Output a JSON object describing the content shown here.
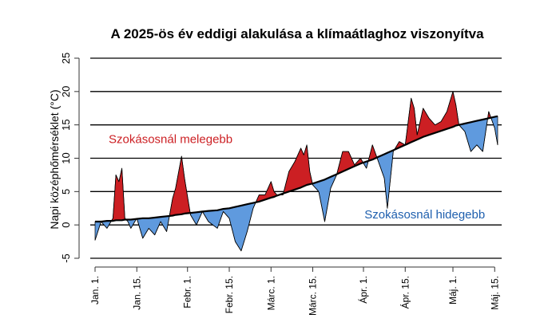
{
  "chart_data": {
    "type": "area",
    "title": "A 2025-ös év eddigi alakulása a klímaátlaghoz viszonyítva",
    "ylabel": "Napi középhőmérséklet (°C)",
    "xlabel": "",
    "ylim": [
      -5,
      25
    ],
    "xlim_days": [
      1,
      136
    ],
    "yticks": [
      25,
      20,
      15,
      10,
      5,
      0,
      -5
    ],
    "ytick_labels": [
      "25",
      "20",
      "15",
      "10",
      "5",
      "0",
      "-5"
    ],
    "grid": true,
    "x_tick_labels": [
      "Jan. 1.",
      "Jan. 15.",
      "Febr. 1.",
      "Febr. 15.",
      "Márc. 1.",
      "Márc. 15.",
      "Ápr. 1.",
      "Ápr. 15.",
      "Máj. 1.",
      "Máj. 15."
    ],
    "x_tick_dates": [
      "2025-01-01",
      "2025-01-15",
      "2025-02-01",
      "2025-02-15",
      "2025-03-01",
      "2025-03-15",
      "2025-04-01",
      "2025-04-15",
      "2025-05-01",
      "2025-05-15"
    ],
    "x_dates": [
      "2025-01-01",
      "2025-01-03",
      "2025-01-05",
      "2025-01-07",
      "2025-01-08",
      "2025-01-09",
      "2025-01-10",
      "2025-01-11",
      "2025-01-12",
      "2025-01-13",
      "2025-01-15",
      "2025-01-17",
      "2025-01-19",
      "2025-01-21",
      "2025-01-23",
      "2025-01-25",
      "2025-01-27",
      "2025-01-28",
      "2025-01-30",
      "2025-01-31",
      "2025-02-02",
      "2025-02-04",
      "2025-02-06",
      "2025-02-08",
      "2025-02-11",
      "2025-02-13",
      "2025-02-15",
      "2025-02-17",
      "2025-02-19",
      "2025-02-21",
      "2025-02-23",
      "2025-02-25",
      "2025-02-27",
      "2025-03-01",
      "2025-03-02",
      "2025-03-03",
      "2025-03-05",
      "2025-03-07",
      "2025-03-09",
      "2025-03-11",
      "2025-03-12",
      "2025-03-13",
      "2025-03-14",
      "2025-03-15",
      "2025-03-17",
      "2025-03-19",
      "2025-03-21",
      "2025-03-23",
      "2025-03-25",
      "2025-03-27",
      "2025-03-29",
      "2025-03-31",
      "2025-04-02",
      "2025-04-04",
      "2025-04-06",
      "2025-04-08",
      "2025-04-09",
      "2025-04-11",
      "2025-04-13",
      "2025-04-15",
      "2025-04-17",
      "2025-04-18",
      "2025-04-19",
      "2025-04-21",
      "2025-04-23",
      "2025-04-25",
      "2025-04-27",
      "2025-04-29",
      "2025-05-01",
      "2025-05-02",
      "2025-05-03",
      "2025-05-05",
      "2025-05-07",
      "2025-05-09",
      "2025-05-11",
      "2025-05-13",
      "2025-05-15",
      "2025-05-16"
    ],
    "series": [
      {
        "role": "observed",
        "values": [
          -2.3,
          0.5,
          -0.5,
          1.0,
          7.5,
          6.5,
          8.5,
          1.0,
          0.5,
          -0.5,
          1.0,
          -2.0,
          -0.5,
          -1.5,
          0.5,
          -1.0,
          4.0,
          5.5,
          10.3,
          7.0,
          1.5,
          0.0,
          2.0,
          0.5,
          -0.5,
          2.0,
          1.0,
          -2.5,
          -3.9,
          -1.0,
          2.5,
          4.5,
          4.5,
          6.5,
          5.0,
          4.5,
          4.5,
          8.0,
          9.5,
          11.5,
          10.5,
          12.0,
          8.0,
          6.0,
          5.0,
          0.5,
          5.5,
          7.5,
          11.0,
          11.0,
          9.0,
          10.0,
          8.5,
          12.0,
          9.5,
          7.0,
          2.5,
          11.0,
          12.5,
          12.0,
          19.0,
          17.5,
          13.5,
          17.5,
          16.0,
          15.0,
          15.5,
          17.0,
          20.0,
          18.0,
          15.0,
          14.0,
          11.0,
          12.0,
          11.0,
          17.0,
          14.5,
          12.0
        ],
        "fill_above_color": "#cc1f23",
        "fill_below_color": "#5f9ade"
      },
      {
        "role": "climate_normal",
        "values": [
          0.5,
          0.5,
          0.6,
          0.6,
          0.7,
          0.7,
          0.7,
          0.8,
          0.8,
          0.8,
          0.9,
          1.0,
          1.0,
          1.1,
          1.2,
          1.3,
          1.4,
          1.5,
          1.6,
          1.7,
          1.8,
          1.9,
          2.0,
          2.1,
          2.2,
          2.4,
          2.5,
          2.7,
          2.9,
          3.1,
          3.3,
          3.5,
          3.8,
          4.1,
          4.2,
          4.4,
          4.7,
          5.0,
          5.3,
          5.6,
          5.8,
          6.0,
          6.1,
          6.2,
          6.5,
          6.8,
          7.2,
          7.6,
          8.0,
          8.4,
          8.8,
          9.2,
          9.5,
          9.8,
          10.2,
          10.6,
          10.8,
          11.2,
          11.6,
          12.0,
          12.4,
          12.6,
          12.8,
          13.2,
          13.5,
          13.8,
          14.1,
          14.4,
          14.7,
          14.9,
          15.0,
          15.2,
          15.4,
          15.6,
          15.8,
          16.0,
          16.2,
          16.3
        ],
        "line_color": "#000000"
      }
    ],
    "annotations": [
      {
        "text": "Szokásosnál melegebb",
        "color": "#cc1f23",
        "anchor_date": "2025-01-01",
        "anchor_value": 12.3
      },
      {
        "text": "Szokásosnál hidegebb",
        "color": "#1e5fae",
        "anchor_date": "2025-03-31",
        "anchor_value": 1.0
      }
    ],
    "colors": {
      "warmer": "#cc1f23",
      "colder": "#5f9ade",
      "grid": "#000000",
      "axis": "#333333"
    }
  }
}
